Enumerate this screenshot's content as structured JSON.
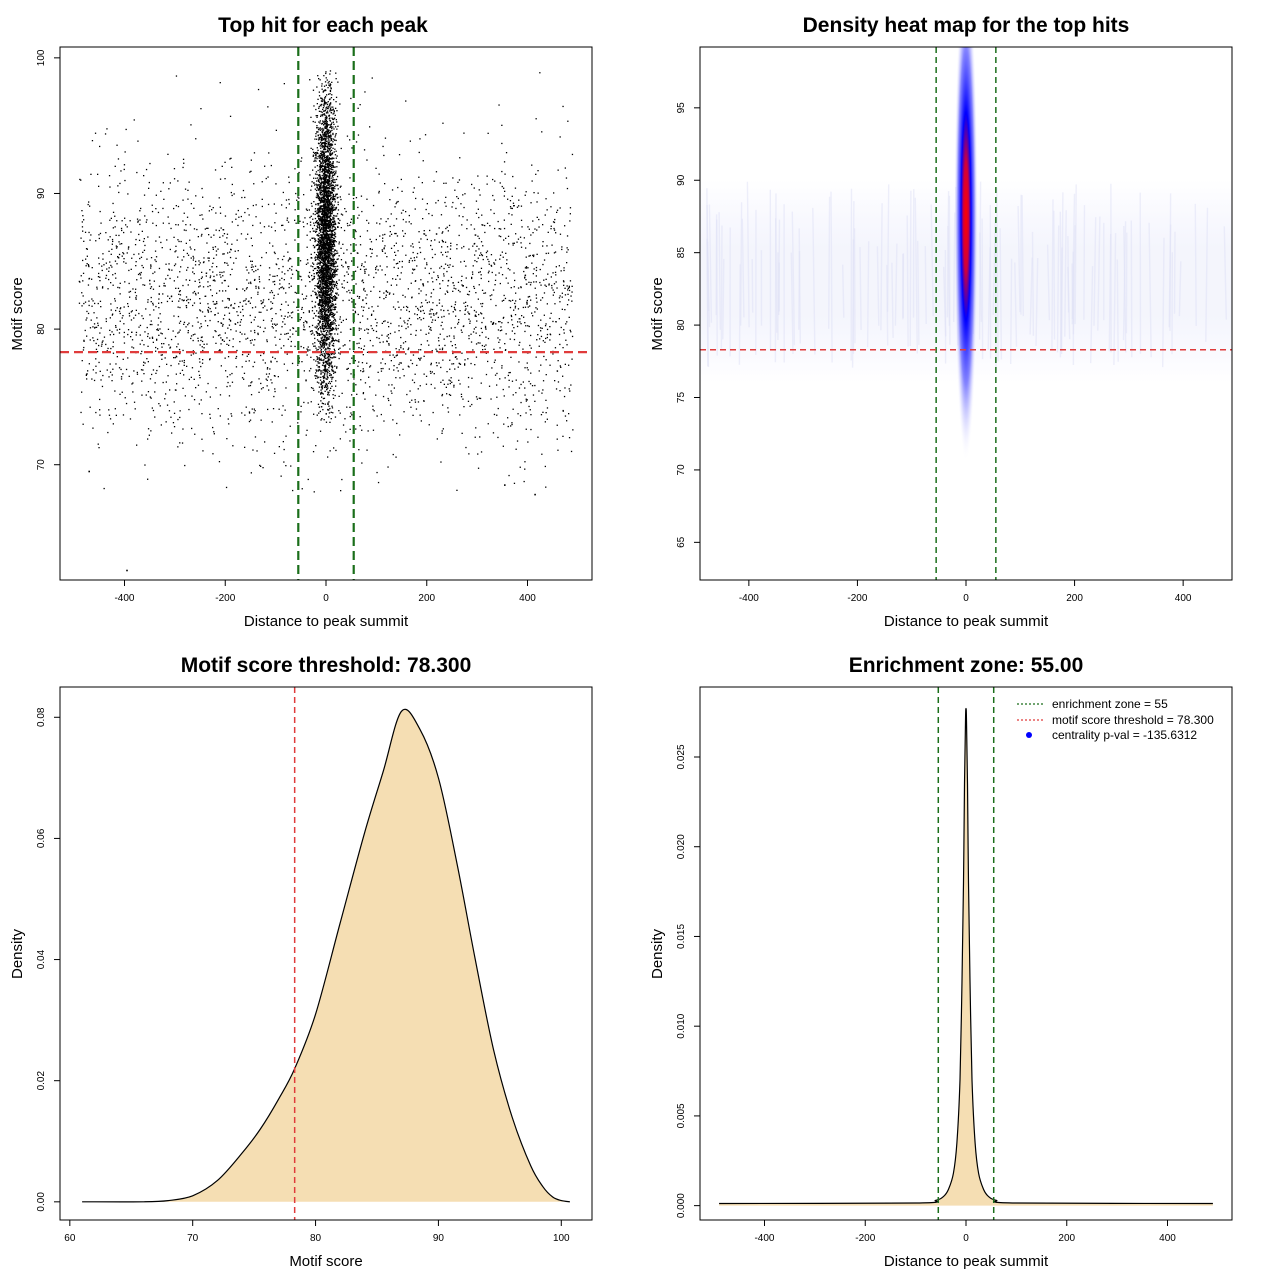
{
  "colors": {
    "threshold_line": "#e03b3b",
    "zone_line": "#1a6e1a",
    "density_fill": "#f5deb3",
    "heat_core": "#ff0000",
    "heat_mid": "#0000ff"
  },
  "chart_data": [
    {
      "type": "scatter",
      "title": "Top hit for each peak",
      "xlabel": "Distance to peak summit",
      "ylabel": "Motif score",
      "xlim": [
        -528,
        528
      ],
      "ylim": [
        61.5,
        100.8
      ],
      "xticks": [
        -400,
        -200,
        0,
        200,
        400
      ],
      "yticks": [
        70,
        80,
        90,
        100
      ],
      "hlines": [
        78.3
      ],
      "vlines": [
        -55,
        55
      ],
      "background_points": {
        "x_range": [
          -490,
          490
        ],
        "y_mean": 82,
        "y_sd": 5.2
      },
      "central_points": {
        "x_mean": 0,
        "x_sd": 10,
        "y_mean": 86.5,
        "y_sd": 5.5
      },
      "outliers": [
        {
          "x": -395,
          "y": 62.2
        },
        {
          "x": -470,
          "y": 69.5
        },
        {
          "x": 415,
          "y": 67.8
        },
        {
          "x": 355,
          "y": 68.5
        }
      ]
    },
    {
      "type": "heatmap",
      "title": "Density heat map for the top hits",
      "xlabel": "Distance to peak summit",
      "ylabel": "Motif score",
      "xlim": [
        -490,
        490
      ],
      "ylim": [
        62.4,
        99.2
      ],
      "xticks": [
        -400,
        -200,
        0,
        200,
        400
      ],
      "yticks": [
        65,
        70,
        75,
        80,
        85,
        90,
        95
      ],
      "hlines": [
        78.3
      ],
      "vlines": [
        -55,
        55
      ],
      "density_peak": {
        "x": 0,
        "y": 87.5
      }
    },
    {
      "type": "area",
      "title": "Motif score threshold: 78.300",
      "xlabel": "Motif score",
      "ylabel": "Density",
      "xlim": [
        59.2,
        102.5
      ],
      "ylim": [
        -0.003,
        0.085
      ],
      "xticks": [
        60,
        70,
        80,
        90,
        100
      ],
      "yticks": [
        0.0,
        0.02,
        0.04,
        0.06,
        0.08
      ],
      "ytick_labels": [
        "0.00",
        "0.02",
        "0.04",
        "0.06",
        "0.08"
      ],
      "vlines": [
        78.3
      ],
      "x": [
        61,
        66,
        68,
        70,
        72,
        74,
        75.5,
        77,
        78.3,
        80,
        82,
        84,
        85.5,
        87,
        88.5,
        90,
        91.5,
        93,
        94.5,
        96,
        97.5,
        98.5,
        99.3,
        100,
        100.7
      ],
      "y": [
        0.0,
        0.0,
        0.0002,
        0.001,
        0.0035,
        0.008,
        0.012,
        0.017,
        0.022,
        0.031,
        0.046,
        0.061,
        0.071,
        0.081,
        0.078,
        0.07,
        0.056,
        0.04,
        0.025,
        0.014,
        0.006,
        0.0025,
        0.0008,
        0.0002,
        0.0
      ]
    },
    {
      "type": "area",
      "title": "Enrichment zone: 55.00",
      "xlabel": "Distance to peak summit",
      "ylabel": "Density",
      "xlim": [
        -528,
        528
      ],
      "ylim": [
        -0.0008,
        0.0289
      ],
      "xticks": [
        -400,
        -200,
        0,
        200,
        400
      ],
      "yticks": [
        0.0,
        0.005,
        0.01,
        0.015,
        0.02,
        0.025
      ],
      "ytick_labels": [
        "0.000",
        "0.005",
        "0.010",
        "0.015",
        "0.020",
        "0.025"
      ],
      "vlines": [
        -55,
        55
      ],
      "x": [
        -490,
        -100,
        -60,
        -45,
        -35,
        -25,
        -18,
        -12,
        -8,
        -5,
        -3,
        -1,
        0,
        1,
        3,
        5,
        8,
        12,
        18,
        25,
        35,
        45,
        60,
        100,
        490
      ],
      "y": [
        0.00012,
        0.00015,
        0.0003,
        0.0005,
        0.0009,
        0.0018,
        0.0035,
        0.007,
        0.0125,
        0.018,
        0.0235,
        0.027,
        0.0277,
        0.027,
        0.0235,
        0.018,
        0.0125,
        0.007,
        0.0035,
        0.0018,
        0.0009,
        0.0005,
        0.0003,
        0.00015,
        0.00012
      ],
      "legend": {
        "position": "top-right",
        "entries": [
          {
            "label": "enrichment zone = 55",
            "color": "#1a6e1a",
            "style": "dotted-line"
          },
          {
            "label": "motif score threshold = 78.300",
            "color": "#e03b3b",
            "style": "dotted-line"
          },
          {
            "label": "centrality p-val = -135.6312",
            "color": "#0000ff",
            "style": "point"
          }
        ]
      }
    }
  ]
}
